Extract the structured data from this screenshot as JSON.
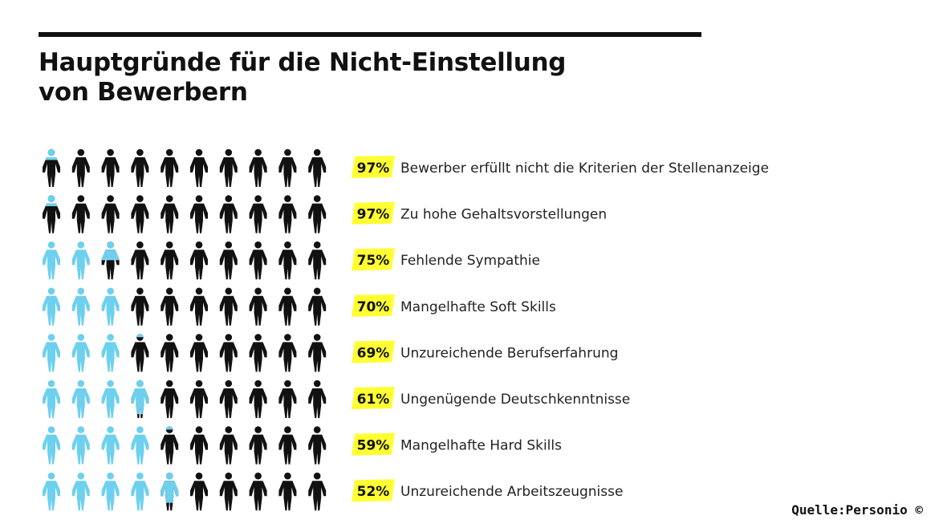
{
  "title": {
    "line1": "Hauptgründe für die Nicht-Einstellung",
    "line2": "von Bewerbern"
  },
  "source": {
    "label": "Quelle:Personio",
    "copyright": "©"
  },
  "colors": {
    "highlight_figure": "#6dd0ee",
    "base_figure": "#111111",
    "label_badge": "#ffff33",
    "rule": "#111111"
  },
  "chart_data": {
    "type": "pictogram",
    "icon": "person-icon",
    "figures_per_row": 10,
    "unit_percent_per_figure": 10,
    "fill_direction": "top-down, left-to-right",
    "figure_fills_note": "light blue portion of each row = 100% minus value",
    "rows": [
      {
        "value": 97,
        "value_label": "97%",
        "label": "Bewerber erfüllt nicht die Kriterien der Stellenanzeige"
      },
      {
        "value": 97,
        "value_label": "97%",
        "label": "Zu hohe Gehaltsvorstellungen"
      },
      {
        "value": 75,
        "value_label": "75%",
        "label": "Fehlende Sympathie"
      },
      {
        "value": 70,
        "value_label": "70%",
        "label": "Mangelhafte Soft Skills"
      },
      {
        "value": 69,
        "value_label": "69%",
        "label": "Unzureichende Berufserfahrung"
      },
      {
        "value": 61,
        "value_label": "61%",
        "label": "Ungenügende Deutschkenntnisse"
      },
      {
        "value": 59,
        "value_label": "59%",
        "label": "Mangelhafte Hard Skills"
      },
      {
        "value": 52,
        "value_label": "52%",
        "label": "Unzureichende Arbeitszeugnisse"
      }
    ]
  }
}
